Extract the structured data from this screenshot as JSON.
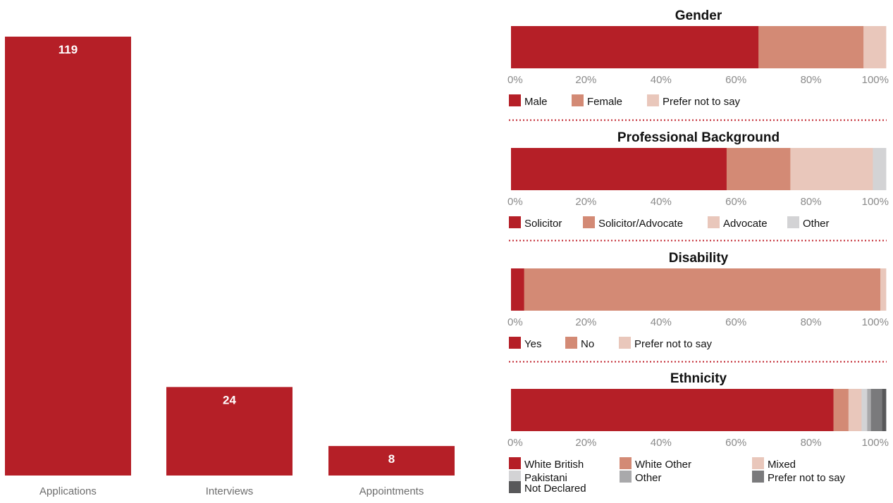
{
  "colors": {
    "primary": "#b51f27",
    "secondary": "#d38a75",
    "tertiary": "#e9c7bb",
    "grey_light": "#d3d3d5",
    "grey_mid": "#a9a9ab",
    "grey_dark": "#7a7a7c",
    "grey_darkest": "#58585a",
    "divider": "#c0232c"
  },
  "chart_data": [
    {
      "type": "bar",
      "categories": [
        "Applications",
        "Interviews",
        "Appointments"
      ],
      "values": [
        119,
        24,
        8
      ],
      "data_labels": [
        "119",
        "24",
        "8"
      ],
      "ylim": [
        0,
        119
      ],
      "grid": false
    },
    {
      "type": "bar",
      "orientation": "horizontal-stacked-100",
      "title": "Gender",
      "xlim": [
        0,
        100
      ],
      "ticks": [
        "0%",
        "20%",
        "40%",
        "60%",
        "80%",
        "100%"
      ],
      "legend_placement": "bottom",
      "series": [
        {
          "name": "Male",
          "value": 66,
          "color": "#b51f27"
        },
        {
          "name": "Female",
          "value": 28,
          "color": "#d38a75"
        },
        {
          "name": "Prefer not to say",
          "value": 6,
          "color": "#e9c7bb"
        }
      ]
    },
    {
      "type": "bar",
      "orientation": "horizontal-stacked-100",
      "title": "Professional Background",
      "xlim": [
        0,
        100
      ],
      "ticks": [
        "0%",
        "20%",
        "40%",
        "60%",
        "80%",
        "100%"
      ],
      "legend_placement": "bottom",
      "series": [
        {
          "name": "Solicitor",
          "value": 57.5,
          "color": "#b51f27"
        },
        {
          "name": "Solicitor/Advocate",
          "value": 17,
          "color": "#d38a75"
        },
        {
          "name": "Advocate",
          "value": 22,
          "color": "#e9c7bb"
        },
        {
          "name": "Other",
          "value": 3.5,
          "color": "#d3d3d5"
        }
      ]
    },
    {
      "type": "bar",
      "orientation": "horizontal-stacked-100",
      "title": "Disability",
      "xlim": [
        0,
        100
      ],
      "ticks": [
        "0%",
        "20%",
        "40%",
        "60%",
        "80%",
        "100%"
      ],
      "legend_placement": "bottom",
      "series": [
        {
          "name": "Yes",
          "value": 3.5,
          "color": "#b51f27"
        },
        {
          "name": "No",
          "value": 95,
          "color": "#d38a75"
        },
        {
          "name": "Prefer not to say",
          "value": 1.5,
          "color": "#e9c7bb"
        }
      ]
    },
    {
      "type": "bar",
      "orientation": "horizontal-stacked-100",
      "title": "Ethnicity",
      "xlim": [
        0,
        100
      ],
      "ticks": [
        "0%",
        "20%",
        "40%",
        "60%",
        "80%",
        "100%"
      ],
      "legend_placement": "bottom",
      "series": [
        {
          "name": "White British",
          "value": 86,
          "color": "#b51f27"
        },
        {
          "name": "White Other",
          "value": 4,
          "color": "#d38a75"
        },
        {
          "name": "Mixed",
          "value": 3.5,
          "color": "#e9c7bb"
        },
        {
          "name": "Pakistani",
          "value": 1.5,
          "color": "#d3d3d5"
        },
        {
          "name": "Other",
          "value": 1,
          "color": "#a9a9ab"
        },
        {
          "name": "Prefer not to say",
          "value": 3,
          "color": "#7a7a7c"
        },
        {
          "name": "Not Declared",
          "value": 1,
          "color": "#58585a"
        }
      ]
    }
  ]
}
